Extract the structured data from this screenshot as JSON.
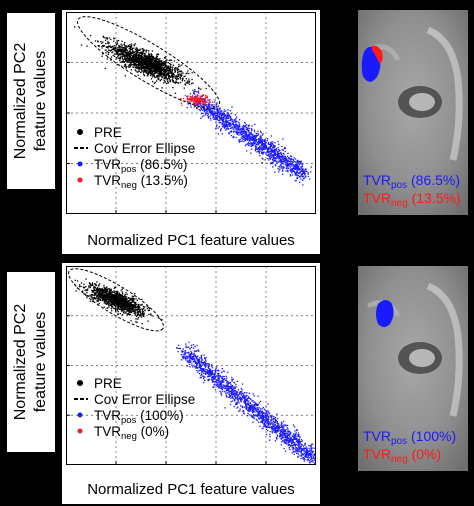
{
  "colors": {
    "pre": "#000000",
    "tvr_pos": "#1a1aff",
    "tvr_neg": "#ff1a1a",
    "background": "#000000",
    "ellipse": "#000000"
  },
  "top_panel": {
    "ylabel_line1": "Normalized PC2",
    "ylabel_line2": "feature values",
    "xlabel": "Normalized PC1 feature values",
    "legend": {
      "pre": "PRE",
      "ellipse": "Cov Error Ellipse",
      "pos_main": "TVR",
      "pos_sub": "pos",
      "pos_pct": " (86.5%)",
      "neg_main": "TVR",
      "neg_sub": "neg",
      "neg_pct": " (13.5%)"
    },
    "thumb": {
      "pos_main": "TVR",
      "pos_sub": "pos",
      "pos_pct": " (86.5%)",
      "neg_main": "TVR",
      "neg_sub": "neg",
      "neg_pct": " (13.5%)"
    }
  },
  "bottom_panel": {
    "ylabel_line1": "Normalized PC2",
    "ylabel_line2": "feature values",
    "xlabel": "Normalized PC1 feature values",
    "legend": {
      "pre": "PRE",
      "ellipse": "Cov Error Ellipse",
      "pos_main": "TVR",
      "pos_sub": "pos",
      "pos_pct": " (100%)",
      "neg_main": "TVR",
      "neg_sub": "neg",
      "neg_pct": " (0%)"
    },
    "thumb": {
      "pos_main": "TVR",
      "pos_sub": "pos",
      "pos_pct": " (100%)",
      "neg_main": "TVR",
      "neg_sub": "neg",
      "neg_pct": " (0%)"
    }
  },
  "chart_data": [
    {
      "type": "scatter",
      "title": "",
      "xlabel": "Normalized PC1 feature values",
      "ylabel": "Normalized PC2 feature values",
      "axis_ticks_labeled": false,
      "grid": true,
      "legend_placement": "bottom-left",
      "series": [
        {
          "name": "PRE",
          "color": "#000000",
          "distribution": "elongated cluster",
          "center": [
            0.32,
            0.75
          ],
          "spread_along": 0.12,
          "spread_across": 0.025,
          "angle_deg": -30,
          "n": 1600
        },
        {
          "name": "TVR_pos (86.5%)",
          "color": "#1a1aff",
          "distribution": "diagonal band",
          "from": [
            0.5,
            0.58
          ],
          "to": [
            0.95,
            0.2
          ],
          "n": 1400
        },
        {
          "name": "TVR_neg (13.5%)",
          "color": "#ff1a1a",
          "distribution": "small cluster",
          "center": [
            0.52,
            0.57
          ],
          "n": 140
        }
      ],
      "ellipse": {
        "name": "Cov Error Ellipse",
        "center": [
          0.33,
          0.75
        ],
        "semi_major": 0.33,
        "semi_minor": 0.065,
        "angle_deg": -35
      },
      "percentages": {
        "TVR_pos": 86.5,
        "TVR_neg": 13.5
      }
    },
    {
      "type": "scatter",
      "title": "",
      "xlabel": "Normalized PC1 feature values",
      "ylabel": "Normalized PC2 feature values",
      "axis_ticks_labeled": false,
      "grid": true,
      "legend_placement": "bottom-left",
      "series": [
        {
          "name": "PRE",
          "color": "#000000",
          "distribution": "elongated cluster",
          "center": [
            0.2,
            0.83
          ],
          "spread_along": 0.09,
          "spread_across": 0.02,
          "angle_deg": -30,
          "n": 1200
        },
        {
          "name": "TVR_pos (100%)",
          "color": "#1a1aff",
          "distribution": "diagonal band",
          "from": [
            0.47,
            0.58
          ],
          "to": [
            0.99,
            0.03
          ],
          "n": 1600
        },
        {
          "name": "TVR_neg (0%)",
          "color": "#ff1a1a",
          "distribution": "none",
          "n": 0
        }
      ],
      "ellipse": {
        "name": "Cov Error Ellipse",
        "center": [
          0.2,
          0.83
        ],
        "semi_major": 0.22,
        "semi_minor": 0.05,
        "angle_deg": -35
      },
      "percentages": {
        "TVR_pos": 100,
        "TVR_neg": 0
      }
    }
  ]
}
